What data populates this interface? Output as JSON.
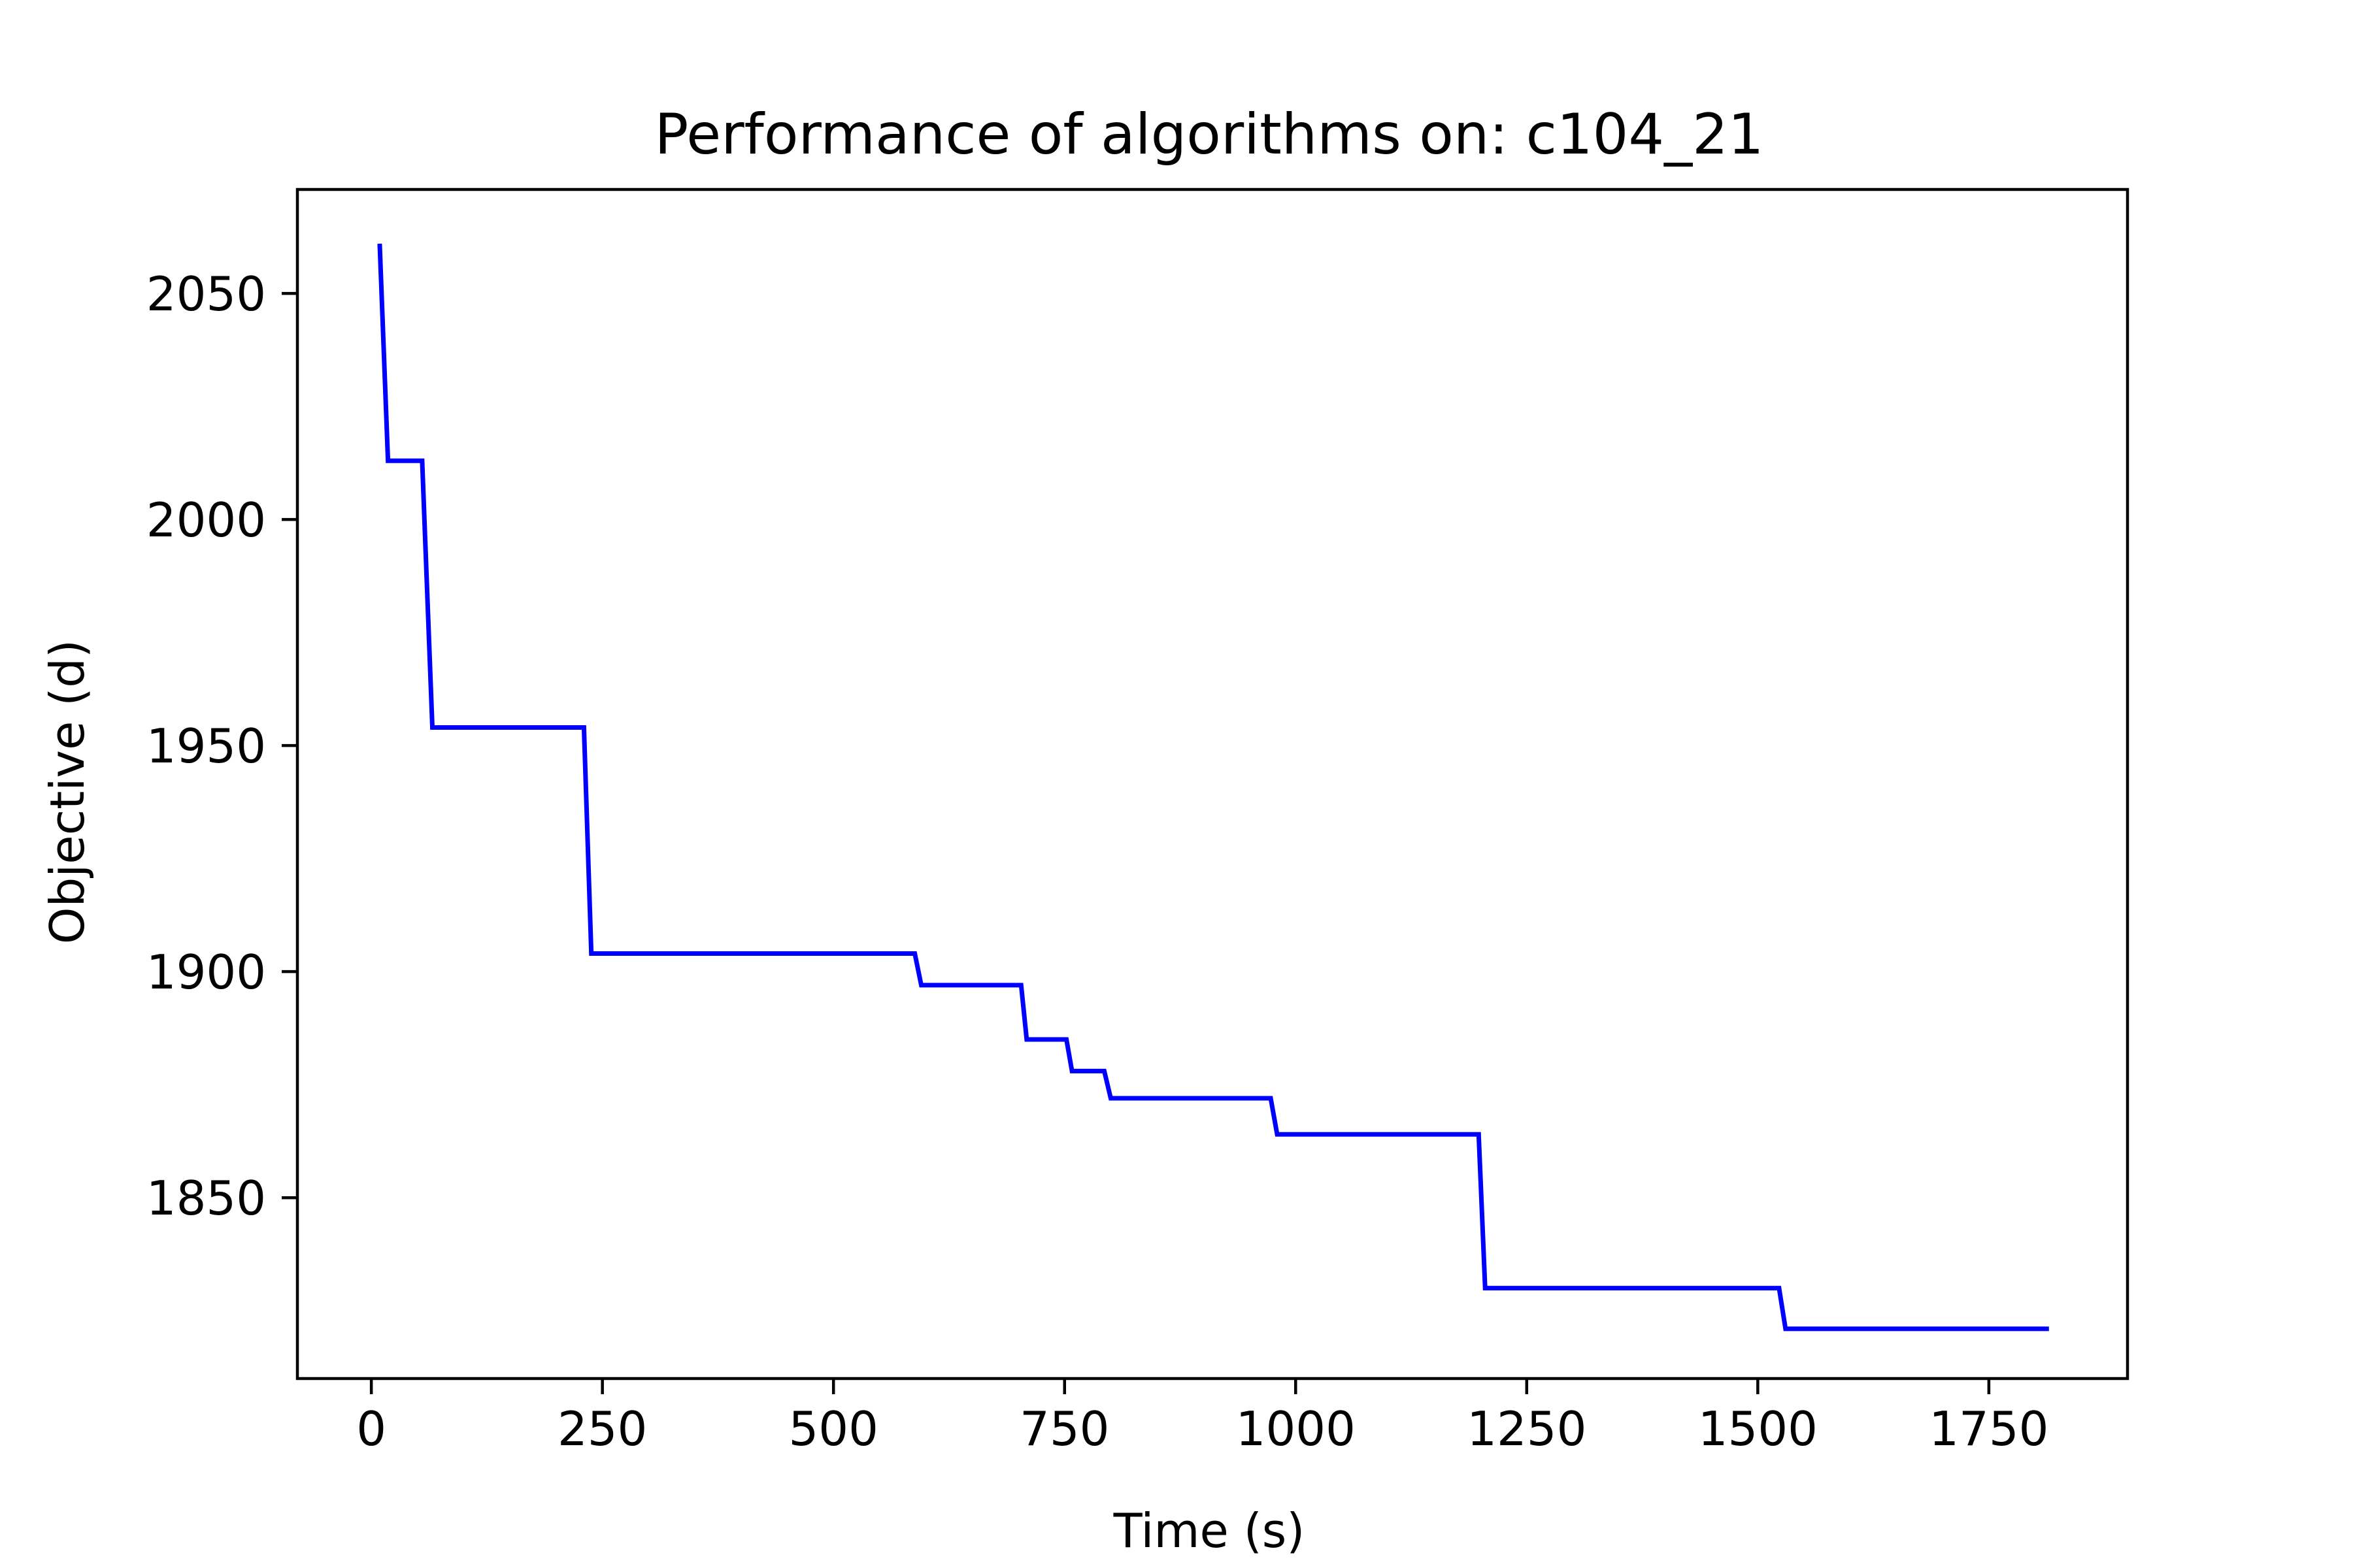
{
  "chart_data": {
    "type": "line",
    "title": "Performance of algorithms on: c104_21",
    "xlabel": "Time (s)",
    "ylabel": "Objective (d)",
    "xlim": [
      -80,
      1900
    ],
    "ylim": [
      1810,
      2073
    ],
    "xticks": [
      0,
      250,
      500,
      750,
      1000,
      1250,
      1500,
      1750
    ],
    "yticks": [
      1850,
      1900,
      1950,
      2000,
      2050
    ],
    "grid": false,
    "legend": false,
    "series": [
      {
        "color": "#0000ff",
        "x": [
          9,
          18,
          55,
          66,
          230,
          238,
          588,
          595,
          703,
          709,
          752,
          758,
          793,
          800,
          973,
          980,
          1198,
          1205,
          1523,
          1530,
          1815
        ],
        "y": [
          2061,
          2013,
          2013,
          1954,
          1954,
          1904,
          1904,
          1897,
          1897,
          1885,
          1885,
          1878,
          1878,
          1872,
          1872,
          1864,
          1864,
          1830,
          1830,
          1821,
          1821
        ]
      }
    ]
  }
}
